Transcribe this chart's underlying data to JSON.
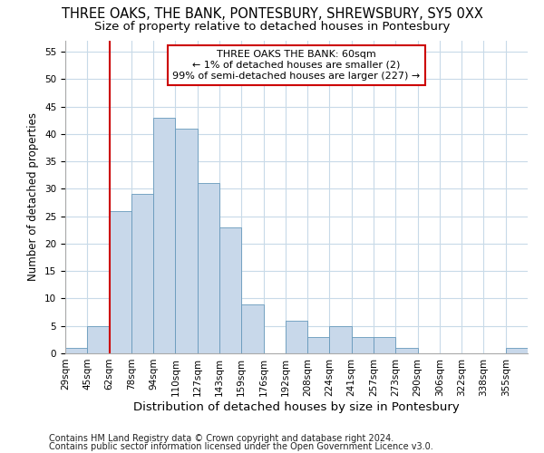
{
  "title": "THREE OAKS, THE BANK, PONTESBURY, SHREWSBURY, SY5 0XX",
  "subtitle": "Size of property relative to detached houses in Pontesbury",
  "xlabel": "Distribution of detached houses by size in Pontesbury",
  "ylabel": "Number of detached properties",
  "bin_labels": [
    "29sqm",
    "45sqm",
    "62sqm",
    "78sqm",
    "94sqm",
    "110sqm",
    "127sqm",
    "143sqm",
    "159sqm",
    "176sqm",
    "192sqm",
    "208sqm",
    "224sqm",
    "241sqm",
    "257sqm",
    "273sqm",
    "290sqm",
    "306sqm",
    "322sqm",
    "338sqm",
    "355sqm"
  ],
  "bar_heights": [
    1,
    5,
    26,
    29,
    43,
    41,
    31,
    23,
    9,
    0,
    6,
    3,
    5,
    3,
    3,
    1,
    0,
    0,
    0,
    0,
    1
  ],
  "bar_color": "#c8d8ea",
  "bar_edge_color": "#6699bb",
  "vline_bin": 2,
  "vline_color": "#cc0000",
  "annotation_text": "THREE OAKS THE BANK: 60sqm\n← 1% of detached houses are smaller (2)\n99% of semi-detached houses are larger (227) →",
  "annotation_box_color": "#ffffff",
  "annotation_box_edge": "#cc0000",
  "ylim": [
    0,
    57
  ],
  "yticks": [
    0,
    5,
    10,
    15,
    20,
    25,
    30,
    35,
    40,
    45,
    50,
    55
  ],
  "footer1": "Contains HM Land Registry data © Crown copyright and database right 2024.",
  "footer2": "Contains public sector information licensed under the Open Government Licence v3.0.",
  "bg_color": "#ffffff",
  "grid_color": "#c8dae8",
  "title_fontsize": 10.5,
  "subtitle_fontsize": 9.5,
  "ylabel_fontsize": 8.5,
  "xlabel_fontsize": 9.5,
  "tick_fontsize": 7.5,
  "annotation_fontsize": 8,
  "footer_fontsize": 7
}
